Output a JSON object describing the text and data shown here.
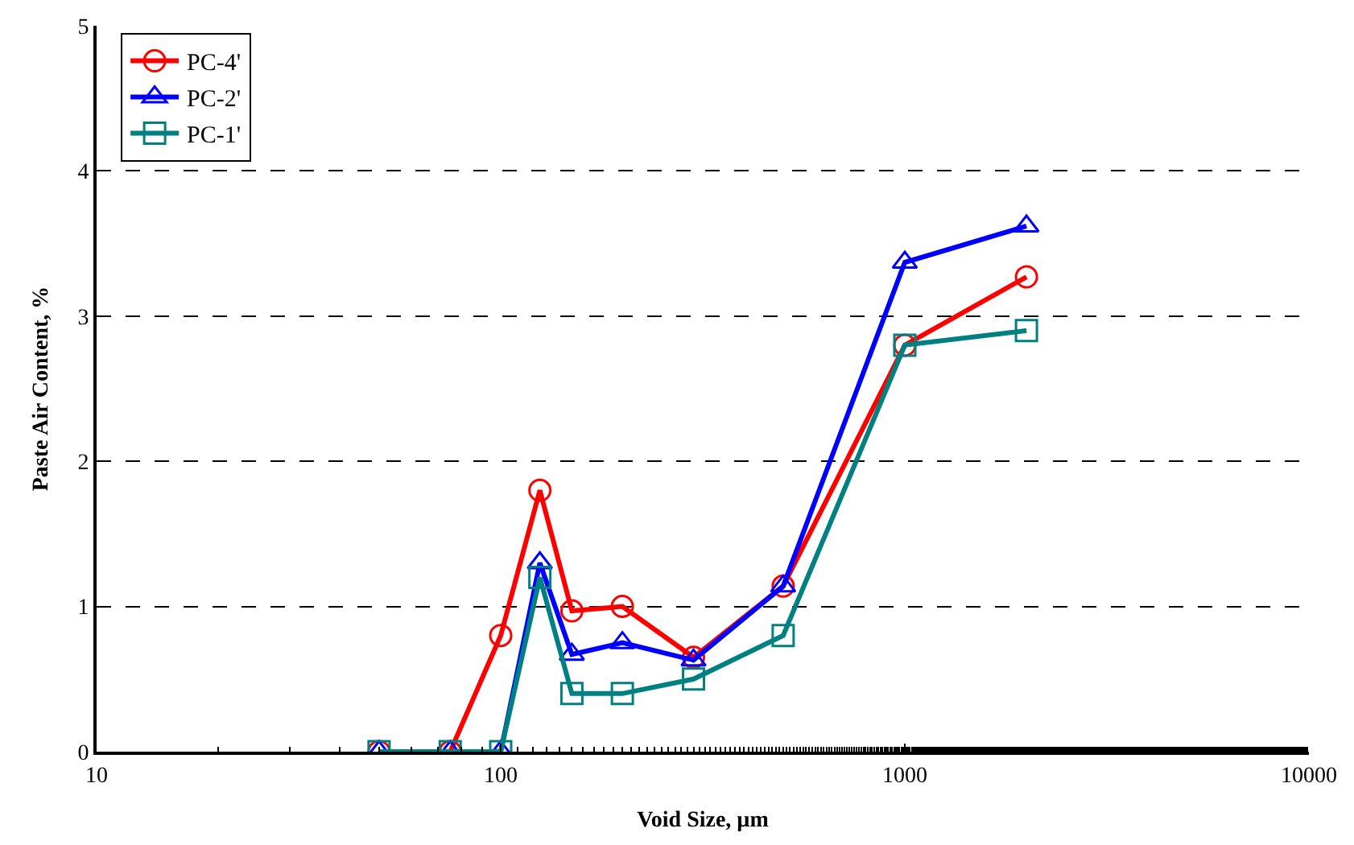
{
  "chart_data": {
    "type": "line",
    "xlabel": "Void Size, µm",
    "ylabel": "Paste Air Content, %",
    "log": "x",
    "x": [
      50,
      75,
      100,
      125,
      150,
      200,
      300,
      500,
      1000,
      2000
    ],
    "series": [
      {
        "name": "PC-4'",
        "color": "#ff0000",
        "marker": "circle",
        "values": [
          0,
          0,
          0.8,
          1.8,
          0.97,
          1.0,
          0.65,
          1.14,
          2.8,
          3.27
        ]
      },
      {
        "name": "PC-2'",
        "color": "#0000ff",
        "marker": "triangle",
        "values": [
          0,
          0,
          0,
          1.3,
          0.67,
          0.75,
          0.63,
          1.14,
          3.37,
          3.62
        ]
      },
      {
        "name": "PC-1'",
        "color": "#008080",
        "marker": "square",
        "values": [
          0,
          0,
          0,
          1.2,
          0.4,
          0.4,
          0.5,
          0.8,
          2.8,
          2.9
        ]
      }
    ],
    "xlim": [
      10,
      10000
    ],
    "xticks": [
      10,
      100,
      1000,
      10000
    ],
    "ylim": [
      0,
      5
    ],
    "yticks": [
      0,
      1,
      2,
      3,
      4,
      5
    ],
    "grid": "y",
    "legend": "top left",
    "line_style": "solid"
  }
}
